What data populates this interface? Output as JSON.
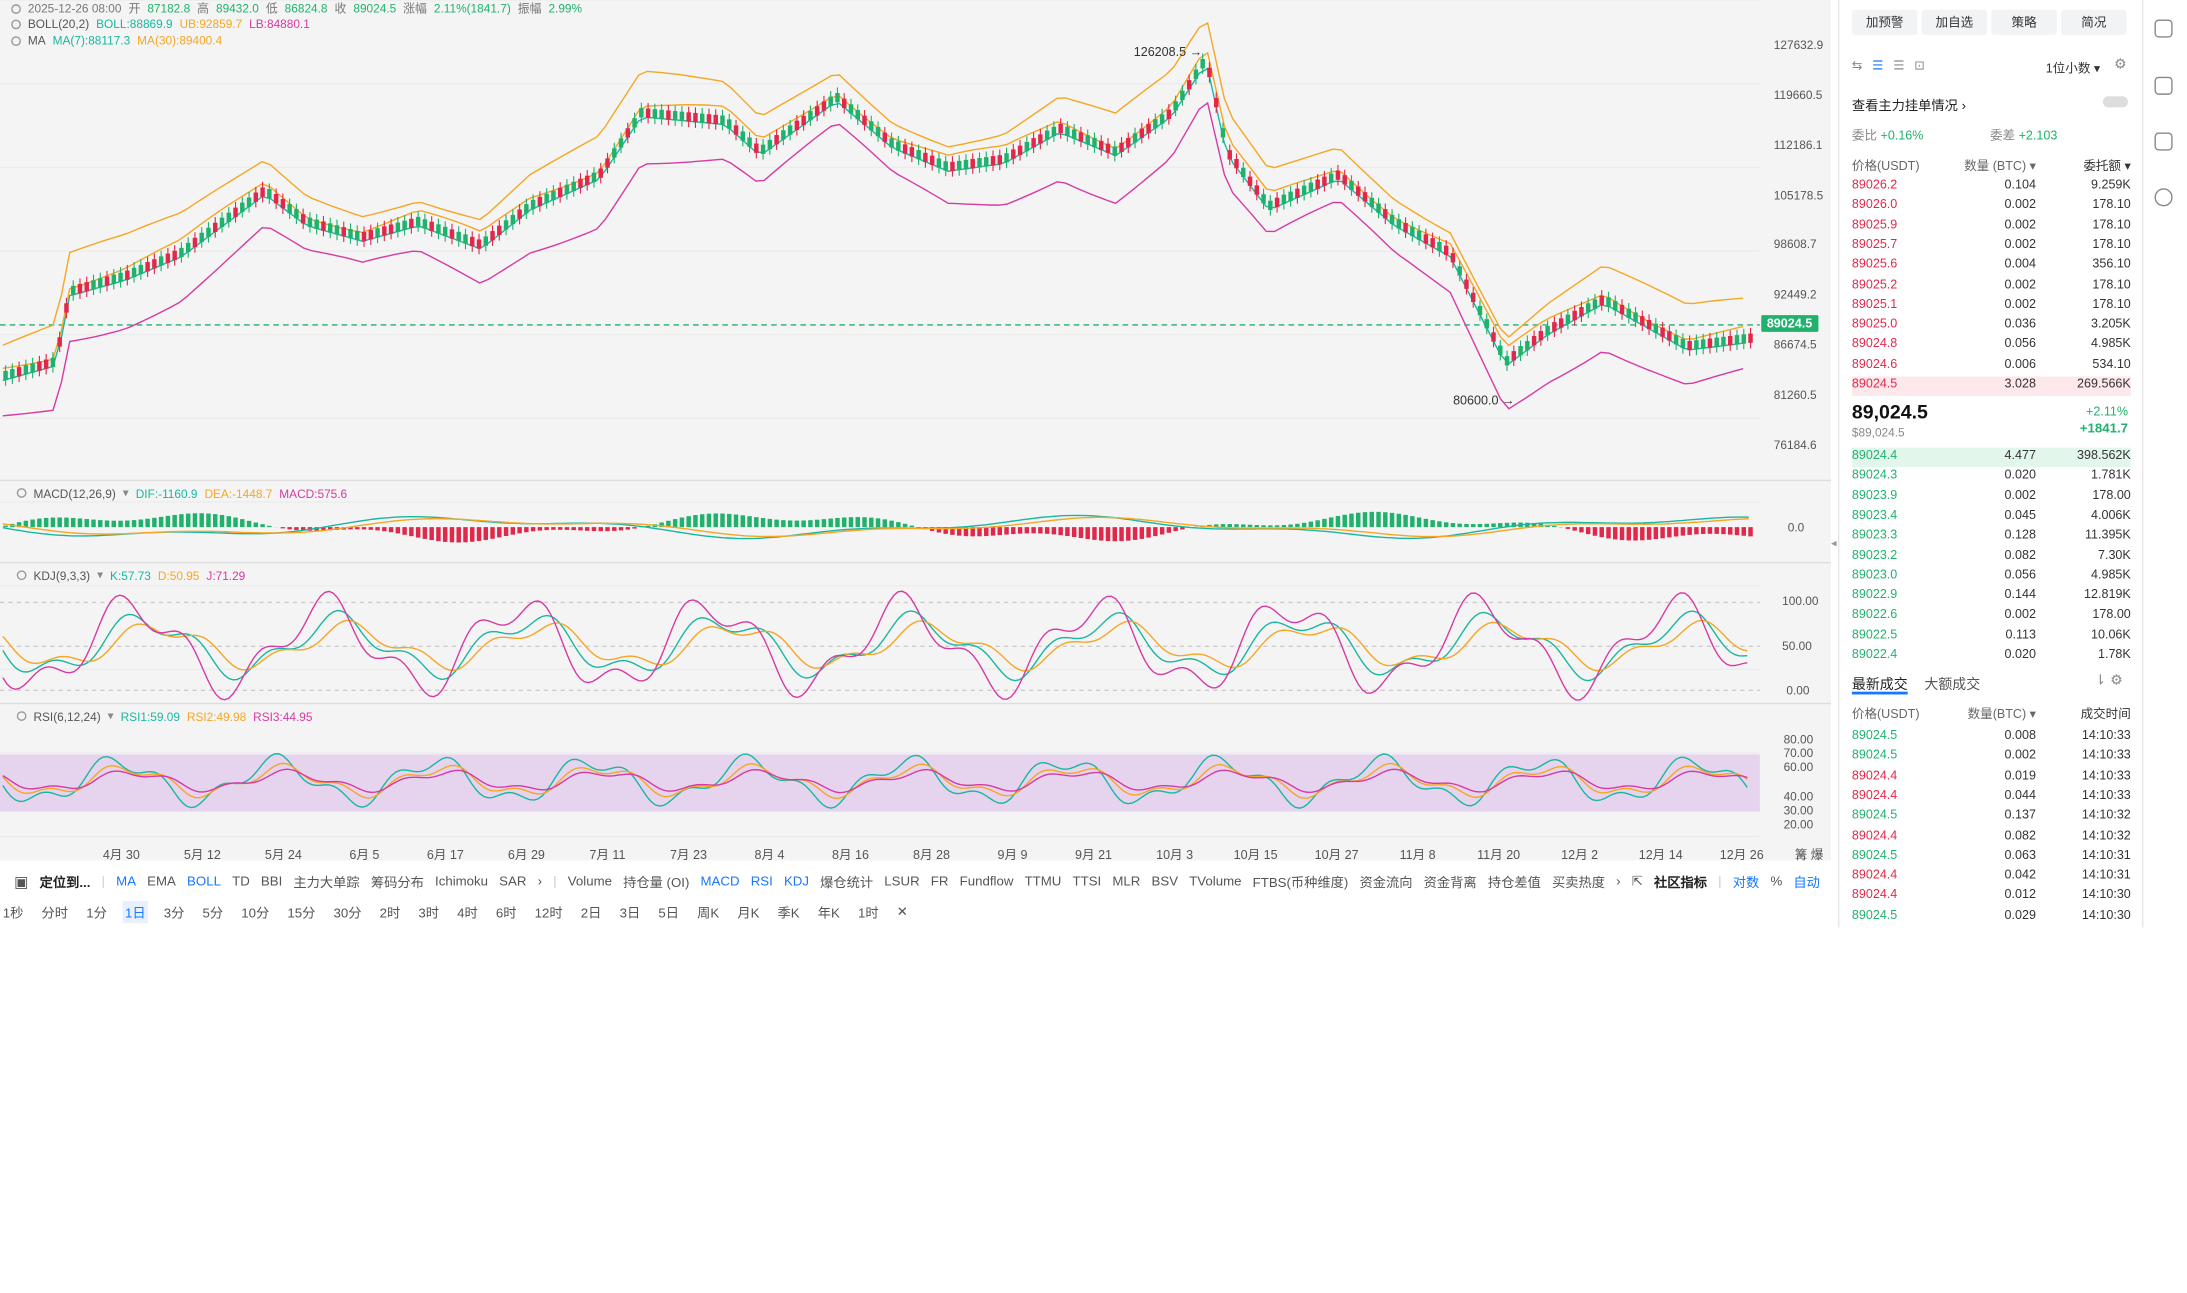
{
  "header": {
    "date": "2025-12-26 08:00",
    "open_label": "开",
    "open": "87182.8",
    "high_label": "高",
    "high": "89432.0",
    "low_label": "低",
    "low": "86824.8",
    "close_label": "收",
    "close": "89024.5",
    "change_label": "涨幅",
    "change": "2.11%(1841.7)",
    "amp_label": "振幅",
    "amp": "2.99%"
  },
  "indicators": {
    "boll": {
      "name": "BOLL(20,2)",
      "boll": "BOLL:88869.9",
      "ub": "UB:92859.7",
      "lb": "LB:84880.1"
    },
    "ma": {
      "name": "MA",
      "ma7": "MA(7):88117.3",
      "ma30": "MA(30):89400.4"
    },
    "macd": {
      "name": "MACD(12,26,9)",
      "dif": "DIF:-1160.9",
      "dea": "DEA:-1448.7",
      "macd": "MACD:575.6"
    },
    "kdj": {
      "name": "KDJ(9,3,3)",
      "k": "K:57.73",
      "d": "D:50.95",
      "j": "J:71.29"
    },
    "rsi": {
      "name": "RSI(6,12,24)",
      "rsi1": "RSI1:59.09",
      "rsi2": "RSI2:49.98",
      "rsi3": "RSI3:44.95"
    }
  },
  "price_axis": [
    "127632.9",
    "119660.5",
    "112186.1",
    "105178.5",
    "98608.7",
    "92449.2",
    "86674.5",
    "81260.5",
    "76184.6"
  ],
  "current_price_tag": "89024.5",
  "high_marker": "126208.5",
  "low_marker": "80600.0",
  "macd_axis": [
    "0.0"
  ],
  "kdj_axis": [
    "100.00",
    "50.00",
    "0.00"
  ],
  "rsi_axis": [
    "80.00",
    "70.00",
    "60.00",
    "40.00",
    "30.00",
    "20.00"
  ],
  "date_axis": [
    "4月 30",
    "5月 12",
    "5月 24",
    "6月 5",
    "6月 17",
    "6月 29",
    "7月 11",
    "7月 23",
    "8月 4",
    "8月 16",
    "8月 28",
    "9月 9",
    "9月 21",
    "10月 3",
    "10月 15",
    "10月 27",
    "11月 8",
    "11月 20",
    "12月 2",
    "12月 14",
    "12月 26"
  ],
  "toolbar_indicators": {
    "locate": "定位到...",
    "items": [
      "MA",
      "EMA",
      "BOLL",
      "TD",
      "BBI",
      "主力大单踪",
      "筹码分布",
      "Ichimoku",
      "SAR"
    ],
    "items2": [
      "Volume",
      "持仓量 (OI)",
      "MACD",
      "RSI",
      "KDJ",
      "爆仓统计",
      "LSUR",
      "FR",
      "Fundflow",
      "TTMU",
      "TTSI",
      "MLR",
      "BSV",
      "TVolume",
      "FTBS(币种维度)",
      "资金流向",
      "资金背离",
      "持仓差值",
      "买卖热度"
    ],
    "community": "社区指标",
    "log": "对数",
    "pct": "%",
    "auto": "自动"
  },
  "intervals": [
    "1秒",
    "分时",
    "1分",
    "1日",
    "3分",
    "5分",
    "10分",
    "15分",
    "30分",
    "2时",
    "3时",
    "4时",
    "6时",
    "12时",
    "2日",
    "3日",
    "5日",
    "周K",
    "月K",
    "季K",
    "年K",
    "1时"
  ],
  "selected_interval": "1日",
  "right_panel": {
    "buttons": [
      "加预警",
      "加自选",
      "策略",
      "简况"
    ],
    "decimals": "1位小数",
    "main_force": "查看主力挂单情况",
    "wei_bi_label": "委比",
    "wei_bi": "+0.16%",
    "wei_cha_label": "委差",
    "wei_cha": "+2.103",
    "book_headers": [
      "价格(USDT)",
      "数量 (BTC)",
      "委托额"
    ],
    "asks": [
      [
        "89026.2",
        "0.104",
        "9.259K"
      ],
      [
        "89026.0",
        "0.002",
        "178.10"
      ],
      [
        "89025.9",
        "0.002",
        "178.10"
      ],
      [
        "89025.7",
        "0.002",
        "178.10"
      ],
      [
        "89025.6",
        "0.004",
        "356.10"
      ],
      [
        "89025.2",
        "0.002",
        "178.10"
      ],
      [
        "89025.1",
        "0.002",
        "178.10"
      ],
      [
        "89025.0",
        "0.036",
        "3.205K"
      ],
      [
        "89024.8",
        "0.056",
        "4.985K"
      ],
      [
        "89024.6",
        "0.006",
        "534.10"
      ],
      [
        "89024.5",
        "3.028",
        "269.566K"
      ]
    ],
    "last_price": "89,024.5",
    "last_price_usd": "$89,024.5",
    "last_change_pct": "+2.11%",
    "last_change": "+1841.7",
    "bids": [
      [
        "89024.4",
        "4.477",
        "398.562K"
      ],
      [
        "89024.3",
        "0.020",
        "1.781K"
      ],
      [
        "89023.9",
        "0.002",
        "178.00"
      ],
      [
        "89023.4",
        "0.045",
        "4.006K"
      ],
      [
        "89023.3",
        "0.128",
        "11.395K"
      ],
      [
        "89023.2",
        "0.082",
        "7.30K"
      ],
      [
        "89023.0",
        "0.056",
        "4.985K"
      ],
      [
        "89022.9",
        "0.144",
        "12.819K"
      ],
      [
        "89022.6",
        "0.002",
        "178.00"
      ],
      [
        "89022.5",
        "0.113",
        "10.06K"
      ],
      [
        "89022.4",
        "0.020",
        "1.78K"
      ]
    ],
    "trades_tabs": [
      "最新成交",
      "大额成交"
    ],
    "trades_headers": [
      "价格(USDT)",
      "数量(BTC)",
      "成交时间"
    ],
    "trades": [
      [
        "89024.5",
        "0.008",
        "14:10:33",
        "up"
      ],
      [
        "89024.5",
        "0.002",
        "14:10:33",
        "up"
      ],
      [
        "89024.4",
        "0.019",
        "14:10:33",
        "down"
      ],
      [
        "89024.4",
        "0.044",
        "14:10:33",
        "down"
      ],
      [
        "89024.5",
        "0.137",
        "14:10:32",
        "up"
      ],
      [
        "89024.4",
        "0.082",
        "14:10:32",
        "down"
      ],
      [
        "89024.5",
        "0.063",
        "14:10:31",
        "up"
      ],
      [
        "89024.4",
        "0.042",
        "14:10:31",
        "down"
      ],
      [
        "89024.4",
        "0.012",
        "14:10:30",
        "down"
      ],
      [
        "89024.5",
        "0.029",
        "14:10:30",
        "up"
      ]
    ]
  },
  "colors": {
    "up": "#20b26c",
    "down": "#e0294a",
    "ub": "#f5a623",
    "lb": "#d63aa5",
    "mid": "#18b7a0",
    "accent": "#1677ff"
  }
}
